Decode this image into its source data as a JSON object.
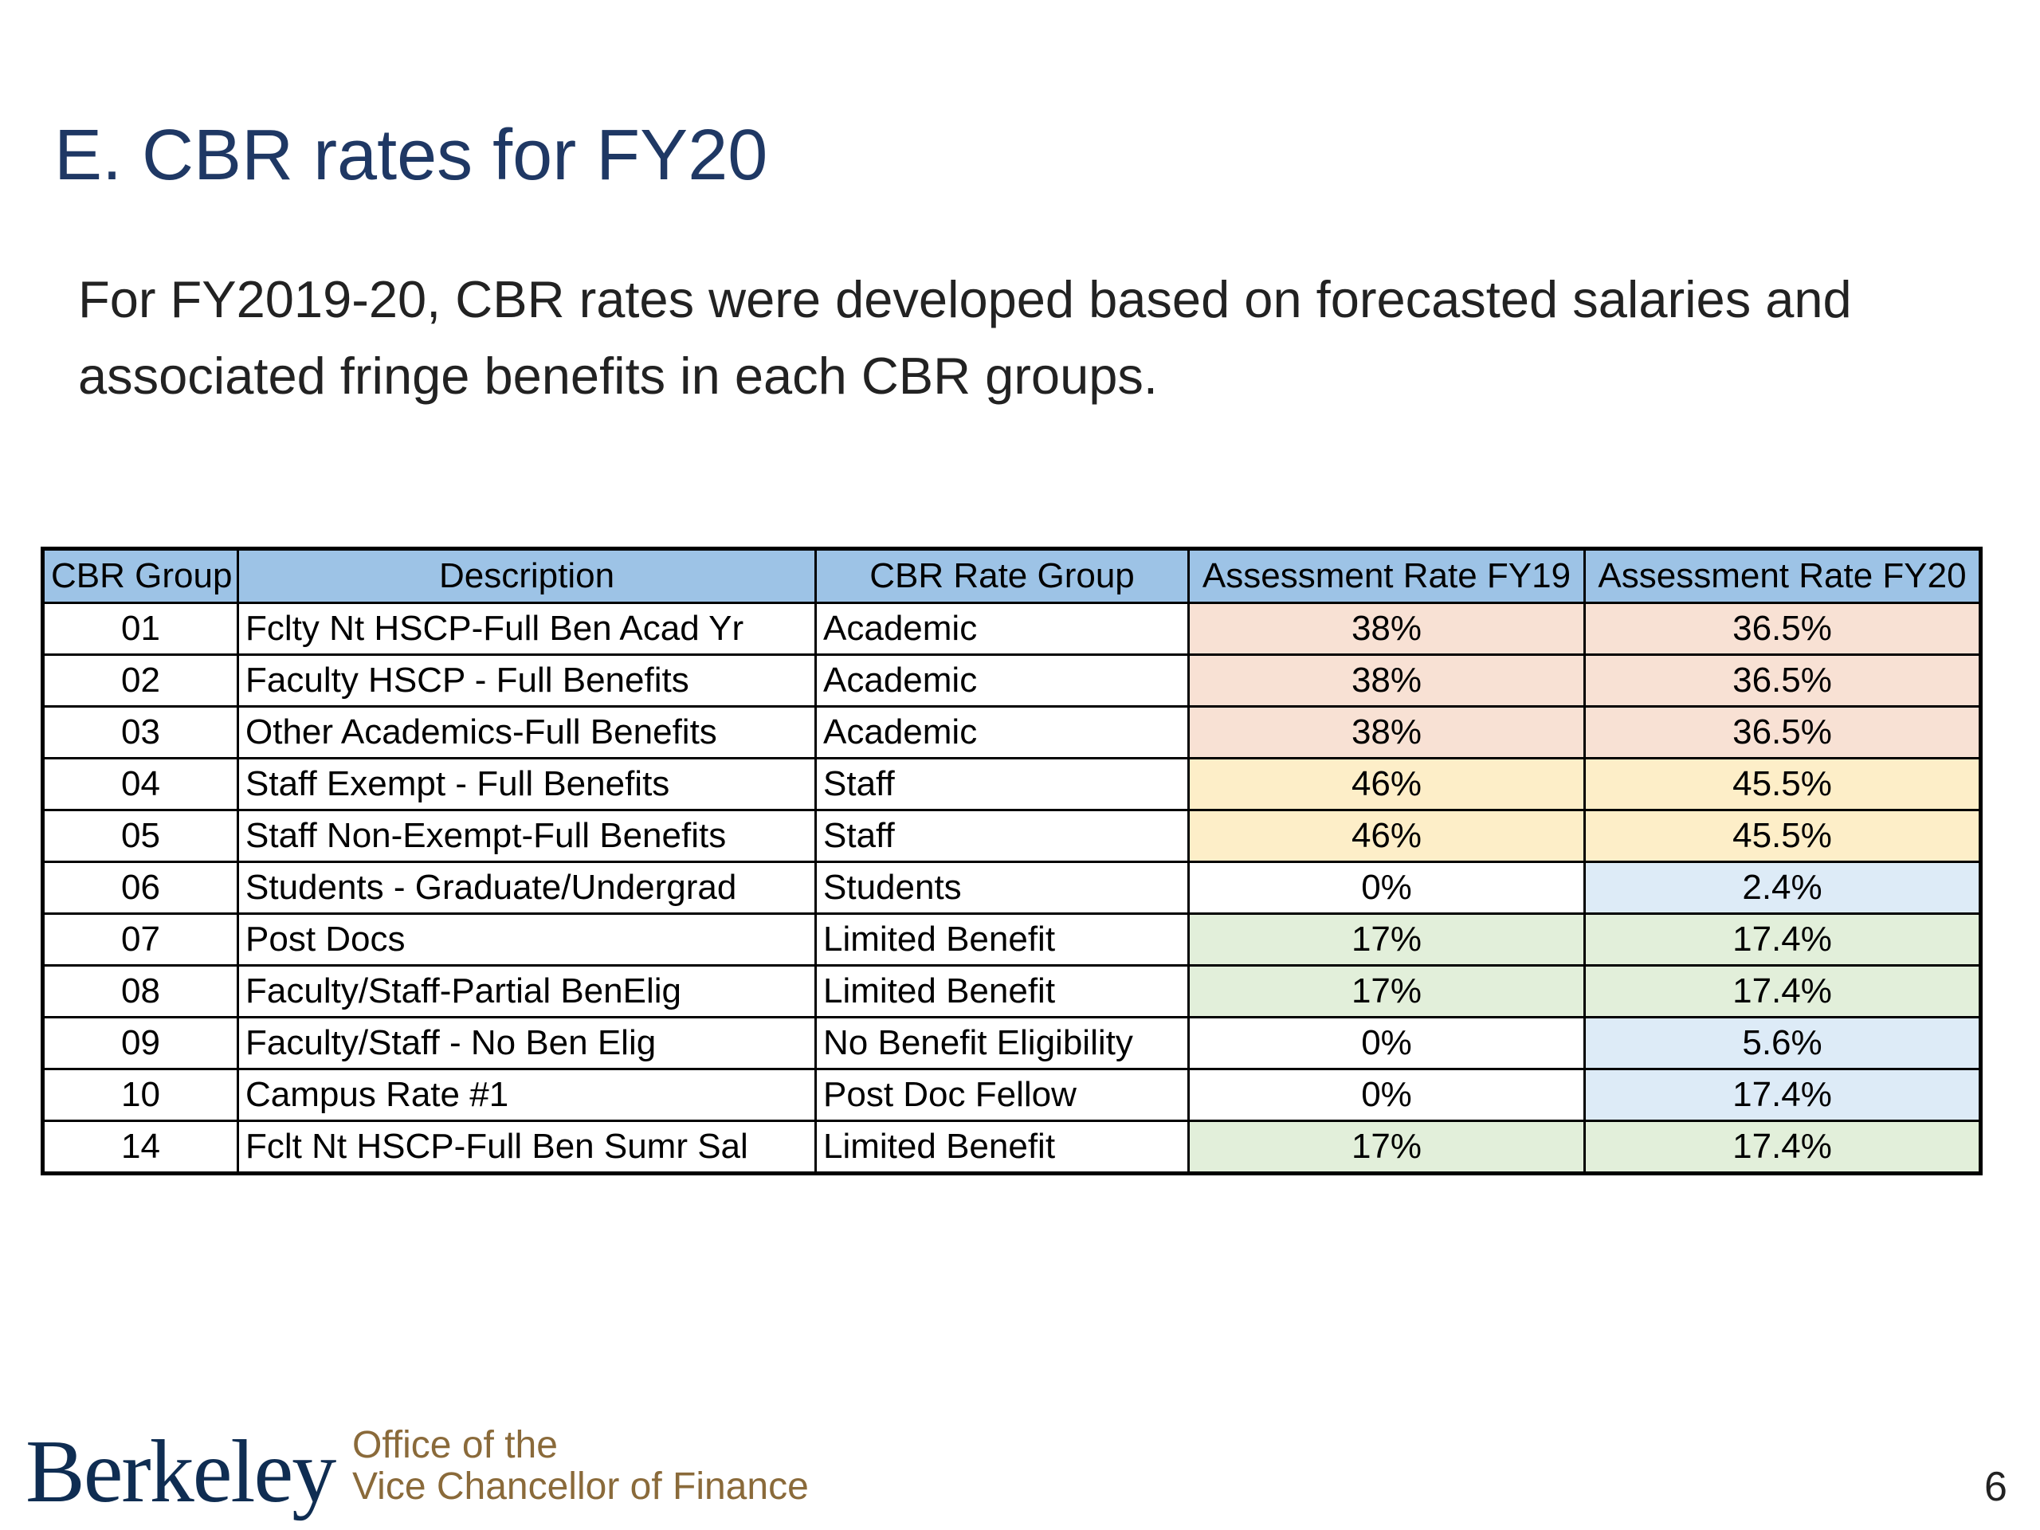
{
  "slide": {
    "title": "E. CBR rates for FY20",
    "intro": "For FY2019-20, CBR rates were developed based on forecasted salaries and associated fringe benefits in each CBR groups.",
    "page_number": "6"
  },
  "table": {
    "headers": {
      "group": "CBR Group",
      "description": "Description",
      "rate_group": "CBR Rate Group",
      "fy19": "Assessment Rate FY19",
      "fy20": "Assessment Rate FY20"
    },
    "rows": [
      {
        "group": "01",
        "description": "Fclty Nt HSCP-Full Ben Acad Yr",
        "rate_group": "Academic",
        "fy19": "38%",
        "fy20": "36.5%",
        "fy19_color": "#f8e1d4",
        "fy20_color": "#f8e1d4"
      },
      {
        "group": "02",
        "description": "Faculty HSCP - Full Benefits",
        "rate_group": "Academic",
        "fy19": "38%",
        "fy20": "36.5%",
        "fy19_color": "#f8e1d4",
        "fy20_color": "#f8e1d4"
      },
      {
        "group": "03",
        "description": "Other Academics-Full Benefits",
        "rate_group": "Academic",
        "fy19": "38%",
        "fy20": "36.5%",
        "fy19_color": "#f8e1d4",
        "fy20_color": "#f8e1d4"
      },
      {
        "group": "04",
        "description": "Staff Exempt - Full Benefits",
        "rate_group": "Staff",
        "fy19": "46%",
        "fy20": "45.5%",
        "fy19_color": "#fdeec8",
        "fy20_color": "#fdeec8"
      },
      {
        "group": "05",
        "description": "Staff Non-Exempt-Full Benefits",
        "rate_group": "Staff",
        "fy19": "46%",
        "fy20": "45.5%",
        "fy19_color": "#fdeec8",
        "fy20_color": "#fdeec8"
      },
      {
        "group": "06",
        "description": "Students - Graduate/Undergrad",
        "rate_group": "Students",
        "fy19": "0%",
        "fy20": "2.4%",
        "fy19_color": "#ffffff",
        "fy20_color": "#ddebf7"
      },
      {
        "group": "07",
        "description": "Post Docs",
        "rate_group": "Limited Benefit",
        "fy19": "17%",
        "fy20": "17.4%",
        "fy19_color": "#e2efda",
        "fy20_color": "#e2efda"
      },
      {
        "group": "08",
        "description": "Faculty/Staff-Partial BenElig",
        "rate_group": "Limited Benefit",
        "fy19": "17%",
        "fy20": "17.4%",
        "fy19_color": "#e2efda",
        "fy20_color": "#e2efda"
      },
      {
        "group": "09",
        "description": "Faculty/Staff - No Ben Elig",
        "rate_group": "No Benefit Eligibility",
        "fy19": "0%",
        "fy20": "5.6%",
        "fy19_color": "#ffffff",
        "fy20_color": "#ddebf7"
      },
      {
        "group": "10",
        "description": "Campus Rate #1",
        "rate_group": "Post Doc Fellow",
        "fy19": "0%",
        "fy20": "17.4%",
        "fy19_color": "#ffffff",
        "fy20_color": "#ddebf7"
      },
      {
        "group": "14",
        "description": "Fclt Nt HSCP-Full Ben Sumr Sal",
        "rate_group": "Limited Benefit",
        "fy19": "17%",
        "fy20": "17.4%",
        "fy19_color": "#e2efda",
        "fy20_color": "#e2efda"
      }
    ]
  },
  "footer": {
    "logo_text": "Berkeley",
    "office_line1": "Office of the",
    "office_line2": "Vice Chancellor of Finance"
  },
  "colors": {
    "title": "#1f3864",
    "header_fill": "#9dc3e6",
    "logo": "#0f2d52",
    "office_text": "#8a6a3a"
  }
}
